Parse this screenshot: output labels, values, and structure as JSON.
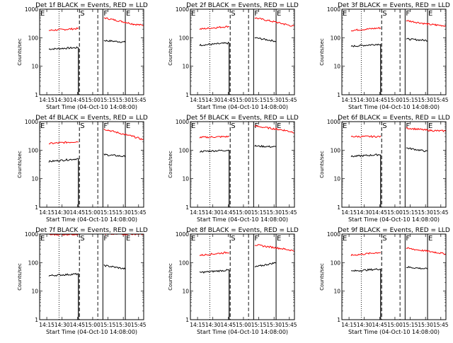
{
  "colors": {
    "events": "#000000",
    "lld": "#ff0000",
    "axes": "#000000",
    "background": "#ffffff"
  },
  "axes_common": {
    "xlabel": "Start Time (04-Oct-10 14:08:00)",
    "ylabel": "Counts/sec",
    "x_ticks": [
      "14:15",
      "14:30",
      "14:45",
      "15:00",
      "15:15",
      "15:30",
      "15:45"
    ],
    "y_ticks": [
      "1",
      "10",
      "100",
      "1000"
    ],
    "x_range": [
      "14:08",
      "15:50"
    ],
    "y_range": [
      1,
      1000
    ],
    "y_scale": "log"
  },
  "markers": [
    {
      "label": "E",
      "time": "14:08",
      "line": "none"
    },
    {
      "label": "S",
      "time": "14:47",
      "line": "dashed"
    },
    {
      "label": "F",
      "time": "15:10",
      "line": "solid"
    },
    {
      "label": "E",
      "time": "15:32",
      "line": "solid"
    }
  ],
  "extra_lines": [
    {
      "time": "14:27",
      "style": "dotted"
    },
    {
      "time": "15:05",
      "style": "dashed"
    }
  ],
  "chart_data": [
    {
      "type": "line",
      "title": "Det 1f BLACK = Events, RED = LLD",
      "xlabel": "Start Time (04-Oct-10 14:08:00)",
      "ylabel": "Counts/sec",
      "x": [
        "14:17",
        "14:46",
        "15:06",
        "15:11",
        "15:32",
        "15:40",
        "15:50"
      ],
      "series": [
        {
          "name": "Events",
          "values": [
            40,
            45,
            null,
            80,
            70,
            null,
            null
          ]
        },
        {
          "name": "LLD",
          "values": [
            180,
            210,
            null,
            500,
            350,
            300,
            270
          ]
        }
      ]
    },
    {
      "type": "line",
      "title": "Det 2f BLACK = Events, RED = LLD",
      "xlabel": "Start Time (04-Oct-10 14:08:00)",
      "ylabel": "Counts/sec",
      "x": [
        "14:17",
        "14:46",
        "15:06",
        "15:11",
        "15:32",
        "15:40",
        "15:50"
      ],
      "series": [
        {
          "name": "Events",
          "values": [
            55,
            65,
            null,
            100,
            75,
            null,
            null
          ]
        },
        {
          "name": "LLD",
          "values": [
            200,
            250,
            null,
            500,
            350,
            300,
            250
          ]
        }
      ]
    },
    {
      "type": "line",
      "title": "Det 3f BLACK = Events, RED = LLD",
      "xlabel": "Start Time (04-Oct-10 14:08:00)",
      "ylabel": "Counts/sec",
      "x": [
        "14:17",
        "14:46",
        "15:06",
        "15:11",
        "15:32",
        "15:40",
        "15:50"
      ],
      "series": [
        {
          "name": "Events",
          "values": [
            50,
            60,
            null,
            90,
            80,
            null,
            null
          ]
        },
        {
          "name": "LLD",
          "values": [
            180,
            220,
            null,
            400,
            300,
            280,
            260
          ]
        }
      ]
    },
    {
      "type": "line",
      "title": "Det 4f BLACK = Events, RED = LLD",
      "xlabel": "Start Time (04-Oct-10 14:08:00)",
      "ylabel": "Counts/sec",
      "x": [
        "14:17",
        "14:46",
        "15:06",
        "15:11",
        "15:32",
        "15:40",
        "15:50"
      ],
      "series": [
        {
          "name": "Events",
          "values": [
            40,
            50,
            null,
            70,
            60,
            null,
            null
          ]
        },
        {
          "name": "LLD",
          "values": [
            170,
            200,
            null,
            550,
            350,
            300,
            230
          ]
        }
      ]
    },
    {
      "type": "line",
      "title": "Det 5f BLACK = Events, RED = LLD",
      "xlabel": "Start Time (04-Oct-10 14:08:00)",
      "ylabel": "Counts/sec",
      "x": [
        "14:17",
        "14:46",
        "15:06",
        "15:11",
        "15:32",
        "15:40",
        "15:50"
      ],
      "series": [
        {
          "name": "Events",
          "values": [
            90,
            100,
            null,
            140,
            130,
            null,
            null
          ]
        },
        {
          "name": "LLD",
          "values": [
            280,
            300,
            null,
            700,
            550,
            500,
            420
          ]
        }
      ]
    },
    {
      "type": "line",
      "title": "Det 6f BLACK = Events, RED = LLD",
      "xlabel": "Start Time (04-Oct-10 14:08:00)",
      "ylabel": "Counts/sec",
      "x": [
        "14:17",
        "14:46",
        "15:06",
        "15:11",
        "15:32",
        "15:40",
        "15:50"
      ],
      "series": [
        {
          "name": "Events",
          "values": [
            60,
            70,
            null,
            120,
            90,
            null,
            null
          ]
        },
        {
          "name": "LLD",
          "values": [
            300,
            300,
            null,
            600,
            500,
            480,
            470
          ]
        }
      ]
    },
    {
      "type": "line",
      "title": "Det 7f BLACK = Events, RED = LLD",
      "xlabel": "Start Time (04-Oct-10 14:08:00)",
      "ylabel": "Counts/sec",
      "x": [
        "14:17",
        "14:46",
        "15:06",
        "15:11",
        "15:32",
        "15:40",
        "15:50"
      ],
      "series": [
        {
          "name": "Events",
          "values": [
            35,
            40,
            null,
            80,
            60,
            null,
            null
          ]
        },
        {
          "name": "LLD",
          "values": [
            950,
            1000,
            null,
            1000,
            1000,
            1000,
            1000
          ]
        }
      ]
    },
    {
      "type": "line",
      "title": "Det 8f BLACK = Events, RED = LLD",
      "xlabel": "Start Time (04-Oct-10 14:08:00)",
      "ylabel": "Counts/sec",
      "x": [
        "14:17",
        "14:46",
        "15:06",
        "15:11",
        "15:32",
        "15:40",
        "15:50"
      ],
      "series": [
        {
          "name": "Events",
          "values": [
            45,
            55,
            null,
            70,
            100,
            null,
            null
          ]
        },
        {
          "name": "LLD",
          "values": [
            180,
            230,
            null,
            420,
            330,
            300,
            260
          ]
        }
      ]
    },
    {
      "type": "line",
      "title": "Det 9f BLACK = Events, RED = LLD",
      "xlabel": "Start Time (04-Oct-10 14:08:00)",
      "ylabel": "Counts/sec",
      "x": [
        "14:17",
        "14:46",
        "15:06",
        "15:11",
        "15:32",
        "15:40",
        "15:50"
      ],
      "series": [
        {
          "name": "Events",
          "values": [
            50,
            60,
            null,
            70,
            60,
            null,
            null
          ]
        },
        {
          "name": "LLD",
          "values": [
            180,
            230,
            null,
            320,
            250,
            230,
            200
          ]
        }
      ]
    }
  ]
}
